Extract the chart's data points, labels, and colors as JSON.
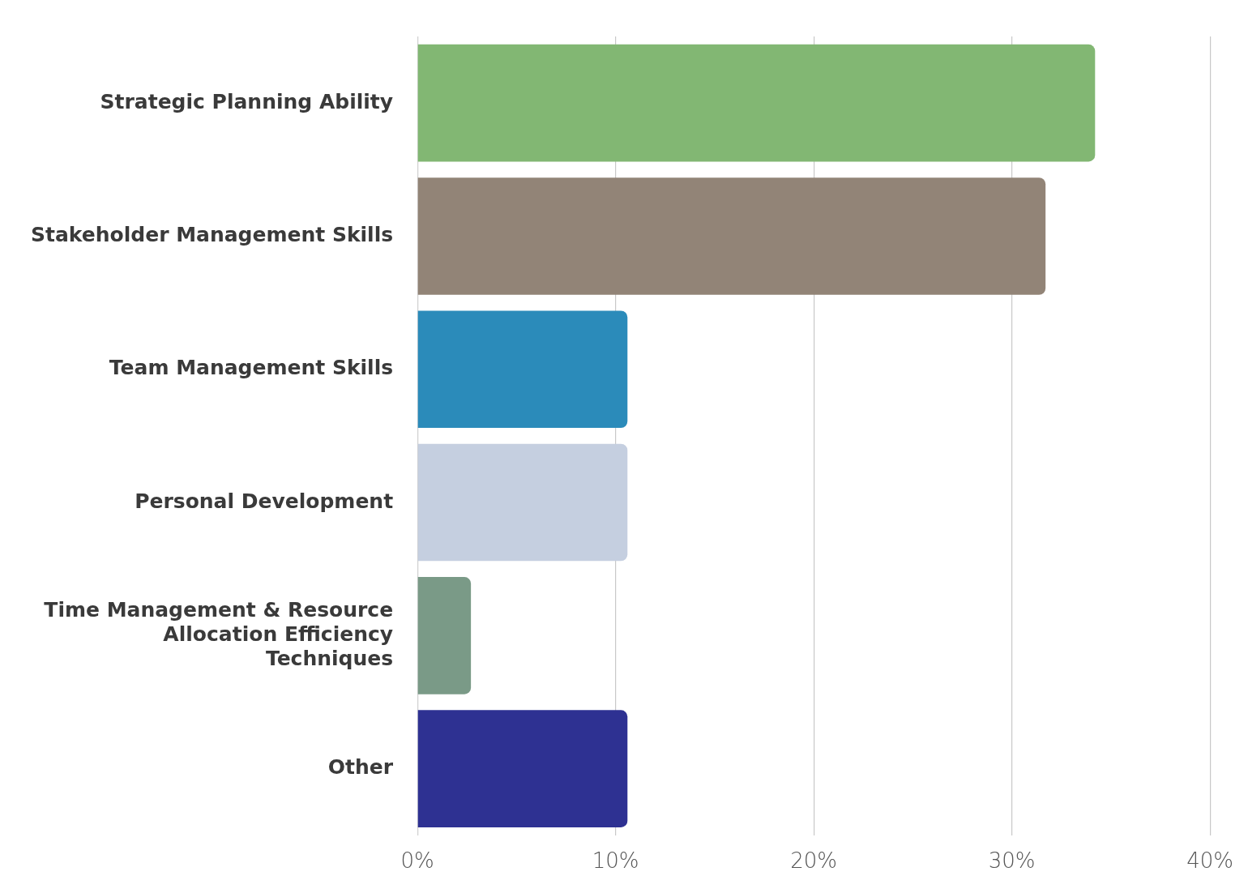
{
  "chart_data": {
    "type": "bar",
    "orientation": "horizontal",
    "categories": [
      "Strategic Planning Ability",
      "Stakeholder Management Skills",
      "Team Management Skills",
      "Personal Development",
      "Time Management & Resource Allocation Efficiency Techniques",
      "Other"
    ],
    "values": [
      34.2,
      31.7,
      10.6,
      10.6,
      2.7,
      10.6
    ],
    "colors": [
      "#82b773",
      "#928477",
      "#2b8bba",
      "#c5cfe0",
      "#7a9a87",
      "#2e3192"
    ],
    "xlim": [
      0,
      40
    ],
    "xticks": [
      {
        "value": 0,
        "label": "0%"
      },
      {
        "value": 10,
        "label": "10%"
      },
      {
        "value": 20,
        "label": "20%"
      },
      {
        "value": 30,
        "label": "30%"
      },
      {
        "value": 40,
        "label": "40%"
      }
    ],
    "grid": "x",
    "legend": false
  }
}
